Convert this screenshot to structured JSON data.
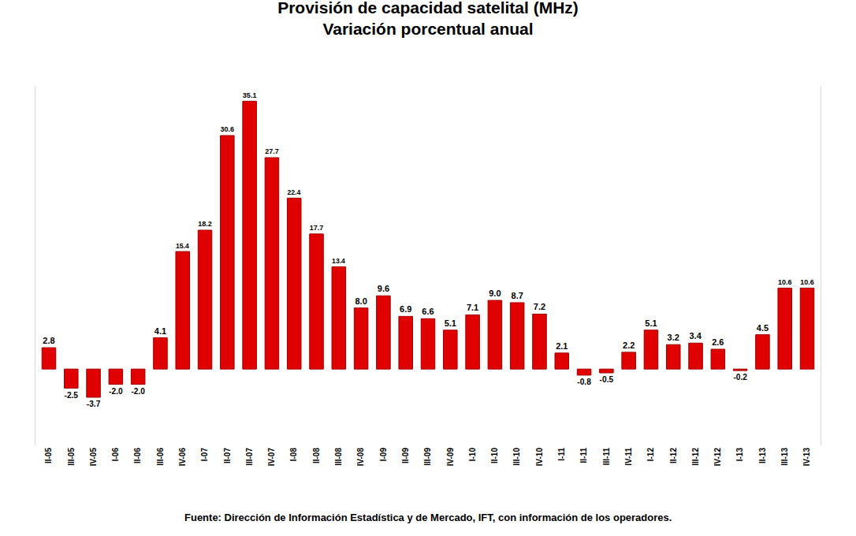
{
  "chart_data": {
    "type": "bar",
    "title": "Provisión de capacidad satelital (MHz)",
    "subtitle": "Variación porcentual anual",
    "source": "Fuente: Dirección de Información Estadística y de Mercado, IFT, con información de los operadores.",
    "categories": [
      "II-05",
      "III-05",
      "IV-05",
      "I-06",
      "II-06",
      "III-06",
      "IV-06",
      "I-07",
      "II-07",
      "III-07",
      "IV-07",
      "I-08",
      "II-08",
      "III-08",
      "IV-08",
      "I-09",
      "II-09",
      "III-09",
      "IV-09",
      "I-10",
      "II-10",
      "III-10",
      "IV-10",
      "I-11",
      "II-11",
      "III-11",
      "IV-11",
      "I-12",
      "II-12",
      "III-12",
      "IV-12",
      "I-13",
      "II-13",
      "III-13",
      "IV-13"
    ],
    "values": [
      2.8,
      -2.5,
      -3.7,
      -2.0,
      -2.0,
      4.1,
      15.4,
      18.2,
      30.6,
      35.1,
      27.7,
      22.4,
      17.7,
      13.4,
      8.0,
      9.6,
      6.9,
      6.6,
      5.1,
      7.1,
      9.0,
      8.7,
      7.2,
      2.1,
      -0.8,
      -0.5,
      2.2,
      5.1,
      3.2,
      3.4,
      2.6,
      -0.2,
      4.5,
      10.6,
      10.6
    ],
    "value_labels": [
      "2.8",
      "-2.5",
      "-3.7",
      "-2.0",
      "-2.0",
      "4.1",
      "15.4",
      "18.2",
      "30.6",
      "35.1",
      "27.7",
      "22.4",
      "17.7",
      "13.4",
      "8.0",
      "9.6",
      "6.9",
      "6.6",
      "5.1",
      "7.1",
      "9.0",
      "8.7",
      "7.2",
      "2.1",
      "-0.8",
      "-0.5",
      "2.2",
      "5.1",
      "3.2",
      "3.4",
      "2.6",
      "-0.2",
      "4.5",
      "10.6",
      "10.6"
    ],
    "color": "#e00000",
    "ylim": [
      -10,
      37
    ],
    "yticks": [],
    "grid": false,
    "data_labels": true,
    "tick_labels": "x"
  }
}
